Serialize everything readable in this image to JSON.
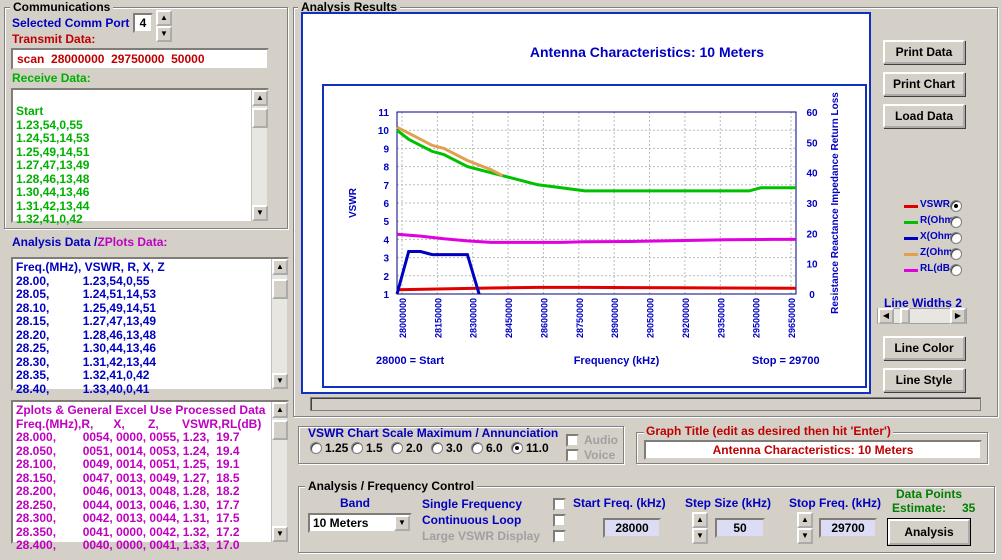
{
  "communications": {
    "title": "Communications",
    "comm_port_label": "Selected Comm Port",
    "comm_port_value": "4",
    "transmit_label": "Transmit Data:",
    "transmit_value": "scan  28000000  29750000  50000",
    "receive_label": "Receive Data:",
    "receive_lines": [
      "Start",
      "1.23,54,0,55",
      "1.24,51,14,53",
      "1.25,49,14,51",
      "1.27,47,13,49",
      "1.28,46,13,48",
      "1.30,44,13,46",
      "1.31,42,13,44",
      "1.32,41,0,42"
    ]
  },
  "analysis_data": {
    "label_a": "Analysis Data /",
    "label_b": "ZPlots Data:",
    "lines": [
      "Freq.(MHz), VSWR, R, X, Z",
      "28.00,          1.23,54,0,55",
      "28.05,          1.24,51,14,53",
      "28.10,          1.25,49,14,51",
      "28.15,          1.27,47,13,49",
      "28.20,          1.28,46,13,48",
      "28.25,          1.30,44,13,46",
      "28.30,          1.31,42,13,44",
      "28.35,          1.32,41,0,42",
      "28.40,          1.33,40,0,41"
    ]
  },
  "zplots": {
    "lines": [
      "Zplots & General Excel Use Processed Data",
      "Freq.(MHz),R,      X,       Z,       VSWR,RL(dB)",
      "28.000,        0054, 0000, 0055, 1.23,  19.7",
      "28.050,        0051, 0014, 0053, 1.24,  19.4",
      "28.100,        0049, 0014, 0051, 1.25,  19.1",
      "28.150,        0047, 0013, 0049, 1.27,  18.5",
      "28.200,        0046, 0013, 0048, 1.28,  18.2",
      "28.250,        0044, 0013, 0046, 1.30,  17.7",
      "28.300,        0042, 0013, 0044, 1.31,  17.5",
      "28.350,        0041, 0000, 0042, 1.32,  17.2",
      "28.400,        0040, 0000, 0041, 1.33,  17.0"
    ]
  },
  "results": {
    "title": "Analysis Results",
    "print_data": "Print Data",
    "print_chart": "Print Chart",
    "load_data": "Load  Data",
    "line_widths": "Line Widths 2",
    "line_width_value": 2,
    "line_color": "Line Color",
    "line_style": "Line Style",
    "series_legend": [
      {
        "name": "VSWR",
        "color": "#e00000",
        "selected": true
      },
      {
        "name": "R(Ohm",
        "color": "#00c000",
        "selected": false
      },
      {
        "name": "X(Ohm",
        "color": "#0000c0",
        "selected": false
      },
      {
        "name": "Z(Ohm",
        "color": "#e0a050",
        "selected": false
      },
      {
        "name": "RL(dB",
        "color": "#e000e0",
        "selected": false
      }
    ]
  },
  "chart_data": {
    "type": "line",
    "title": "Antenna Characteristics: 10 Meters",
    "xlabel": "Frequency (kHz)",
    "ylabel_left": "VSWR",
    "ylabel_right": "Resistance Reactance Impedance Return Loss",
    "x_ticks": [
      "28000000",
      "28150000",
      "28300000",
      "28450000",
      "28600000",
      "28750000",
      "28900000",
      "29050000",
      "29200000",
      "29350000",
      "29500000",
      "29650000"
    ],
    "y_left_ticks": [
      1,
      2,
      3,
      4,
      5,
      6,
      7,
      8,
      9,
      10,
      11
    ],
    "y_right_ticks": [
      0,
      10,
      20,
      30,
      40,
      50,
      60
    ],
    "ylim_left": [
      1,
      11
    ],
    "ylim_right": [
      0,
      60
    ],
    "xlim": [
      28000,
      29700
    ],
    "start_label": "28000 = Start",
    "stop_label": "Stop = 29700",
    "grid": true,
    "series": [
      {
        "name": "VSWR",
        "color": "#e00000",
        "axis": "left",
        "x": [
          28000,
          28200,
          28400,
          28600,
          28800,
          29000,
          29200,
          29400,
          29700
        ],
        "values": [
          1.23,
          1.28,
          1.33,
          1.36,
          1.36,
          1.35,
          1.34,
          1.33,
          1.32
        ]
      },
      {
        "name": "R(Ohm",
        "color": "#00c000",
        "axis": "right",
        "x": [
          28000,
          28050,
          28100,
          28150,
          28200,
          28300,
          28400,
          28500,
          28600,
          28700,
          28800,
          28900,
          29000,
          29100,
          29200,
          29300,
          29400,
          29500,
          29550,
          29700
        ],
        "values": [
          54,
          51,
          49,
          47,
          46,
          42,
          40,
          38,
          36,
          35,
          34,
          34,
          34,
          34,
          34,
          34,
          34,
          34,
          35,
          35
        ]
      },
      {
        "name": "X(Ohm",
        "color": "#0000c0",
        "axis": "right",
        "x": [
          28000,
          28050,
          28100,
          28150,
          28200,
          28250,
          28300,
          28350
        ],
        "values": [
          0,
          14,
          14,
          13,
          13,
          13,
          13,
          0
        ]
      },
      {
        "name": "Z(Ohm",
        "color": "#e0a050",
        "axis": "right",
        "x": [
          28000,
          28050,
          28100,
          28150,
          28200,
          28300,
          28400,
          28450
        ],
        "values": [
          55,
          53,
          51,
          49,
          48,
          44,
          41,
          39
        ]
      },
      {
        "name": "RL(dB",
        "color": "#e000e0",
        "axis": "right",
        "x": [
          28000,
          28100,
          28200,
          28300,
          28400,
          28500,
          28600,
          28700,
          28800,
          29000,
          29200,
          29400,
          29600,
          29700
        ],
        "values": [
          19.7,
          19.1,
          18.2,
          17.5,
          17.0,
          17.0,
          17.0,
          17.0,
          17.2,
          17.3,
          17.6,
          17.9,
          18.0,
          18.0
        ]
      }
    ]
  },
  "scale": {
    "title": "VSWR Chart Scale Maximum / Annunciation",
    "options": [
      "1.25",
      "1.5",
      "2.0",
      "3.0",
      "6.0",
      "11.0"
    ],
    "selected": "11.0",
    "audio": "Audio",
    "voice": "Voice"
  },
  "graph_title": {
    "label": "Graph Title (edit as desired then hit 'Enter')",
    "value": "Antenna Characteristics: 10 Meters"
  },
  "control": {
    "title": "Analysis / Frequency Control",
    "band_label": "Band",
    "band_value": "10 Meters",
    "single_freq": "Single Frequency",
    "continuous": "Continuous Loop",
    "large_vswr": "Large VSWR Display",
    "start_label": "Start Freq. (kHz)",
    "start_value": "28000",
    "step_label": "Step Size (kHz)",
    "step_value": "50",
    "stop_label": "Stop Freq. (kHz)",
    "stop_value": "29700",
    "dp_label": "Data Points",
    "dp_estimate": "Estimate:",
    "dp_value": "35",
    "analysis_button": "Analysis"
  }
}
